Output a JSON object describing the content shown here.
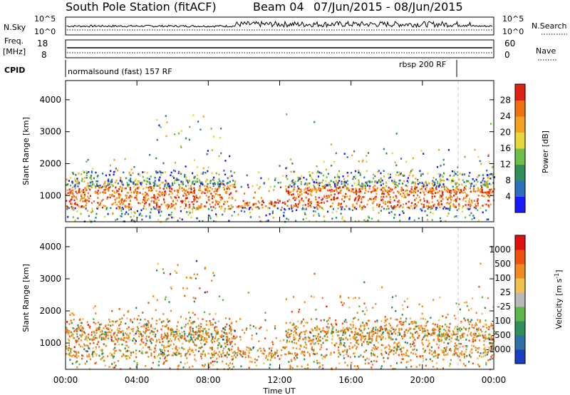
{
  "header": {
    "station": "South Pole Station (fitACF)",
    "beam": "Beam 04",
    "dates": "07/Jun/2015 - 08/Jun/2015"
  },
  "strip": {
    "nsky_label": "N.Sky",
    "nsky_ticks": [
      "10^5",
      "10^0"
    ],
    "nsearch_label": "N.Search",
    "nsearch_ticks": [
      "10^5",
      "10^0"
    ],
    "freq_label": "Freq.",
    "freq_unit": "[MHz]",
    "freq_ticks": [
      "18",
      "8"
    ],
    "nave_label": "Nave",
    "nave_ticks": [
      "60",
      "0"
    ],
    "cpid_label": "CPID",
    "cpid_modes": [
      "normalsound (fast) 157 RF",
      "rbsp 200 RF"
    ]
  },
  "chart_data": [
    {
      "type": "heatmap",
      "name": "power",
      "ylabel": "Slant Range [km]",
      "ylim": [
        180,
        4600
      ],
      "yticks": [
        "1000",
        "2000",
        "3000",
        "4000"
      ],
      "colorbar": {
        "label": "Power [dB]",
        "ticks": [
          "4",
          "8",
          "12",
          "16",
          "20",
          "24",
          "28"
        ],
        "colors": [
          "#1a1aff",
          "#2e6fbf",
          "#2f8f5a",
          "#6cc04a",
          "#e6d83a",
          "#f4a020",
          "#f07010",
          "#e02010"
        ]
      }
    },
    {
      "type": "heatmap",
      "name": "velocity",
      "ylabel": "Slant Range [km]",
      "ylim": [
        180,
        4600
      ],
      "yticks": [
        "1000",
        "2000",
        "3000",
        "4000"
      ],
      "xlabel": "Time UT",
      "xticks": [
        "00:00",
        "04:00",
        "08:00",
        "12:00",
        "16:00",
        "20:00",
        "00:00"
      ],
      "colorbar": {
        "label": "Velocity [m s^-1]",
        "ticks": [
          "1000",
          "500",
          "100",
          "25",
          "-25",
          "-100",
          "-500",
          "-1000"
        ],
        "colors": [
          "#1a3fbf",
          "#2f6fa8",
          "#2f8f5a",
          "#5cb84a",
          "#b8b8b8",
          "#f0c050",
          "#f08a20",
          "#f05010",
          "#e01010"
        ]
      }
    }
  ]
}
